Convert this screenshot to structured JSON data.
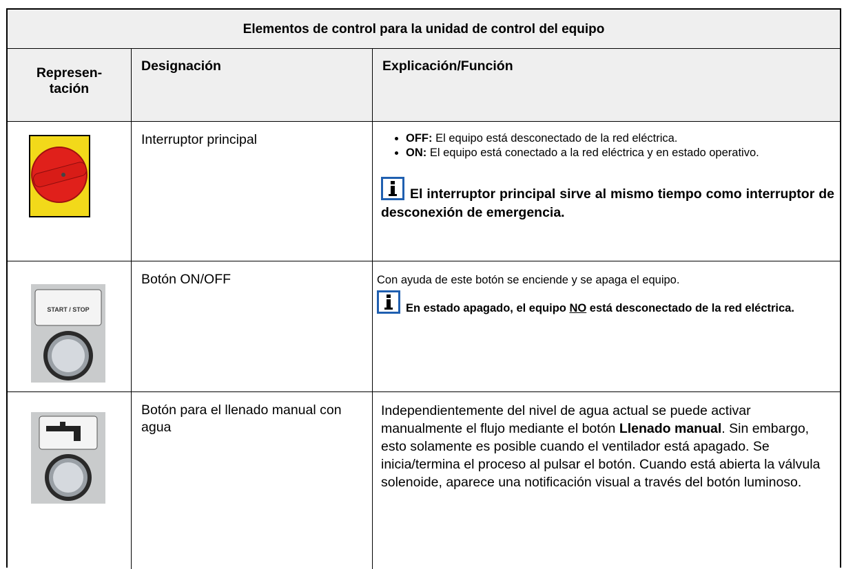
{
  "table": {
    "title": "Elementos de control para la unidad de control del equipo",
    "headers": [
      "Represen-tación",
      "Designación",
      "Explicación/Función"
    ],
    "rows": [
      {
        "designation": "Interruptor principal",
        "bullets": [
          [
            "OFF:",
            " El equipo está desconectado de la red eléctrica."
          ],
          [
            "ON:",
            "  El equipo está conectado a la red eléctrica y en estado operativo."
          ]
        ],
        "note": [
          "El interruptor principal sirve al mismo tiempo como interruptor de desconexión de emergencia."
        ]
      },
      {
        "designation": "Botón ON/OFF",
        "image_label": "START / STOP",
        "text": [
          "Con ayuda de este botón se enciende y se apaga el equipo."
        ],
        "note": [
          "En estado apagado, el equipo ",
          "NO",
          " está desconectado de la red eléctrica."
        ]
      },
      {
        "designation": "Botón para el llenado manual con agua",
        "text": [
          "Independientemente del nivel de agua actual se puede activar manualmente el flujo mediante el botón ",
          "Llenado manual",
          ". Sin embargo, esto solamente es posible cuando el ventilador está apagado. Se inicia/termina el proceso al pulsar el botón. Cuando está abierta la válvula solenoide, aparece una notificación visual a través del botón luminoso."
        ]
      }
    ]
  }
}
